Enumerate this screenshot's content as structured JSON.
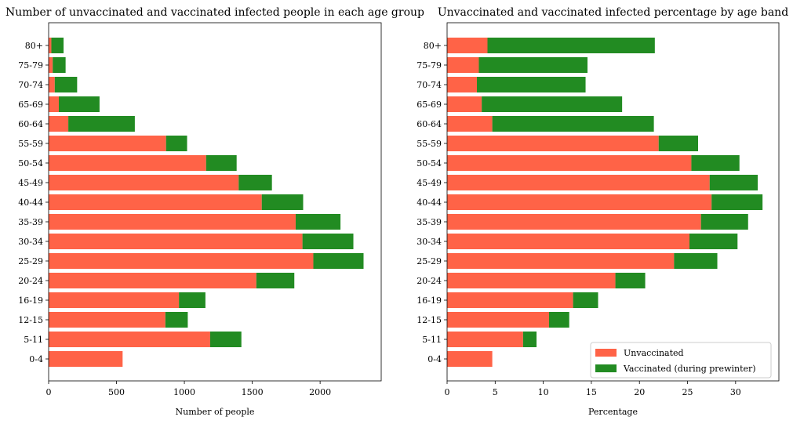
{
  "chart_data": [
    {
      "type": "bar",
      "orientation": "horizontal",
      "stacked": true,
      "title": "Number of unvaccinated and vaccinated infected people in each age group",
      "xlabel": "Number of people",
      "ylabel": "",
      "xlim": [
        0,
        2450
      ],
      "xticks": [
        0,
        500,
        1000,
        1500,
        2000
      ],
      "categories": [
        "0-4",
        "5-11",
        "12-15",
        "16-19",
        "20-24",
        "25-29",
        "30-34",
        "35-39",
        "40-44",
        "45-49",
        "50-54",
        "55-59",
        "60-64",
        "65-69",
        "70-74",
        "75-79",
        "80+"
      ],
      "series": [
        {
          "name": "Unvaccinated",
          "color": "#ff6347",
          "values": [
            545,
            1190,
            860,
            960,
            1530,
            1950,
            1870,
            1820,
            1570,
            1400,
            1160,
            865,
            145,
            75,
            45,
            30,
            20
          ]
        },
        {
          "name": "Vaccinated (during prewinter)",
          "color": "#228b22",
          "values": [
            0,
            230,
            165,
            195,
            280,
            370,
            375,
            330,
            305,
            245,
            225,
            155,
            490,
            300,
            165,
            95,
            90
          ]
        }
      ],
      "grid": false,
      "legend": "none"
    },
    {
      "type": "bar",
      "orientation": "horizontal",
      "stacked": true,
      "title": "Unvaccinated and vaccinated infected percentage by age band",
      "xlabel": "Percentage",
      "ylabel": "",
      "xlim": [
        0,
        34.5
      ],
      "xticks": [
        0,
        5,
        10,
        15,
        20,
        25,
        30
      ],
      "categories": [
        "0-4",
        "5-11",
        "12-15",
        "16-19",
        "20-24",
        "25-29",
        "30-34",
        "35-39",
        "40-44",
        "45-49",
        "50-54",
        "55-59",
        "60-64",
        "65-69",
        "70-74",
        "75-79",
        "80+"
      ],
      "series": [
        {
          "name": "Unvaccinated",
          "color": "#ff6347",
          "values": [
            4.7,
            7.9,
            10.6,
            13.1,
            17.5,
            23.6,
            25.2,
            26.4,
            27.5,
            27.3,
            25.4,
            22.0,
            4.7,
            3.6,
            3.1,
            3.3,
            4.2
          ]
        },
        {
          "name": "Vaccinated (during prewinter)",
          "color": "#228b22",
          "values": [
            0,
            1.4,
            2.1,
            2.6,
            3.1,
            4.5,
            5.0,
            4.9,
            5.3,
            5.0,
            5.0,
            4.1,
            16.8,
            14.6,
            11.3,
            11.3,
            17.4
          ]
        }
      ],
      "grid": false,
      "legend": "bottom-right"
    }
  ]
}
